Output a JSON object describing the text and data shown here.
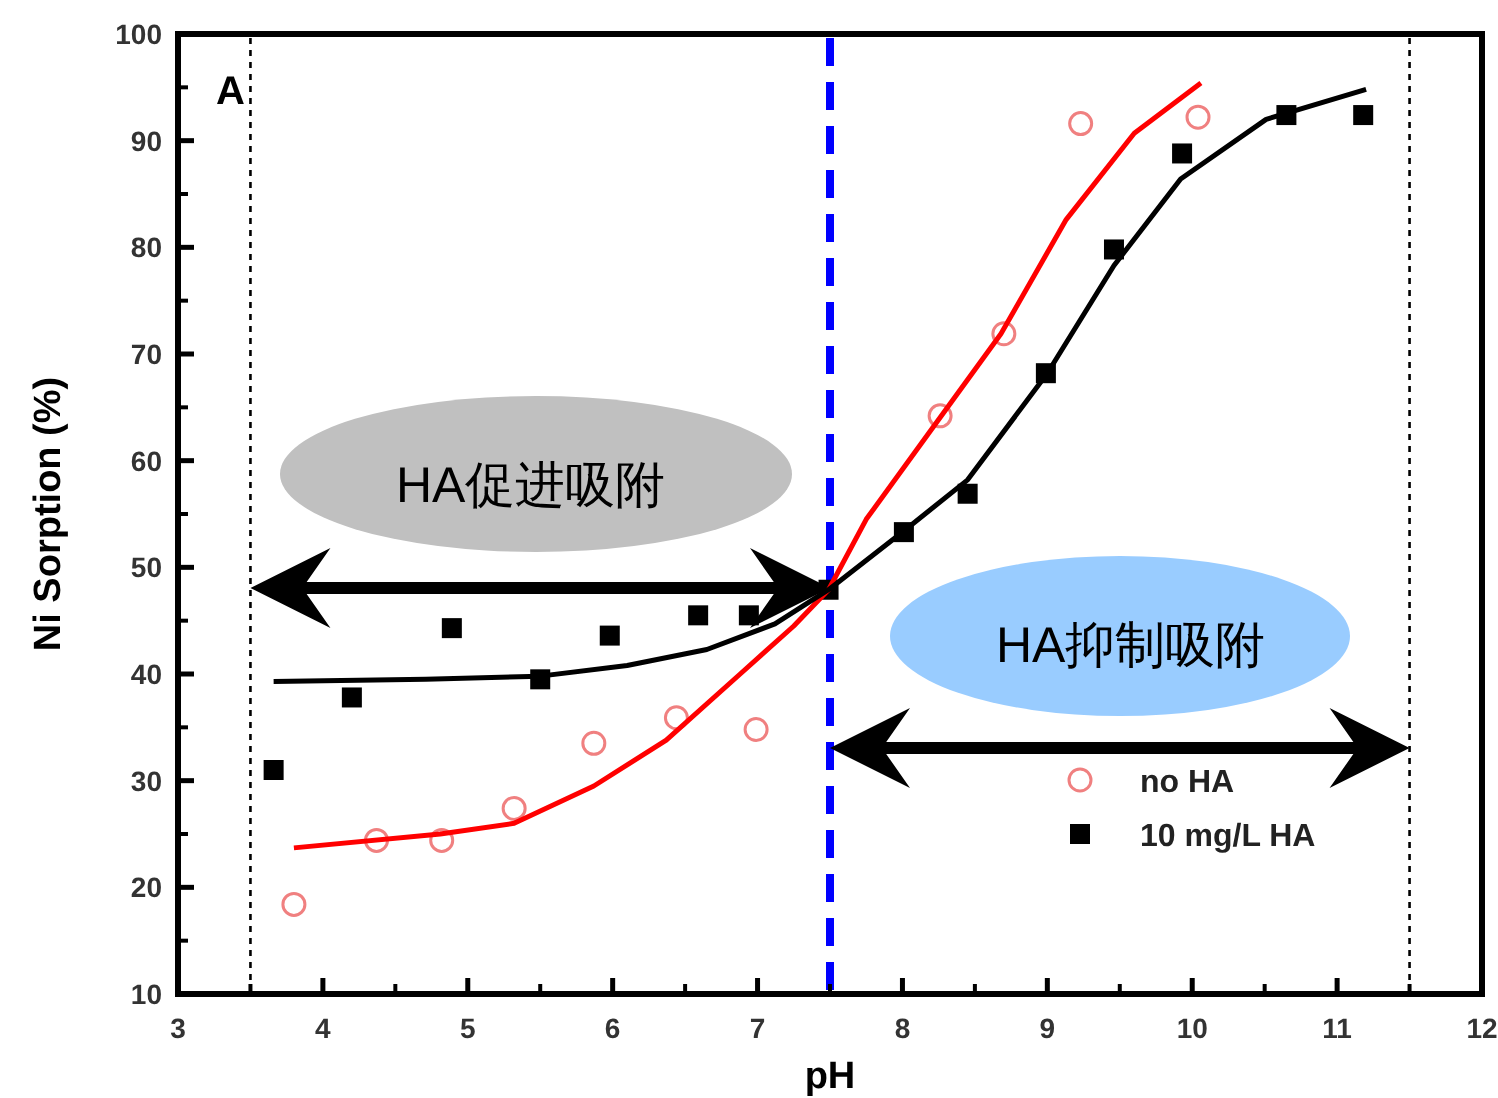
{
  "chart_data": {
    "type": "scatter",
    "xlabel": "pH",
    "ylabel": "Ni Sorption (%)",
    "xlim": [
      3,
      12
    ],
    "xticks": [
      3,
      4,
      5,
      6,
      7,
      8,
      9,
      10,
      11,
      12
    ],
    "ylim": [
      10,
      100
    ],
    "yticks": [
      10,
      20,
      30,
      40,
      50,
      60,
      70,
      80,
      90,
      100
    ],
    "grid": false,
    "legend": "bottom right",
    "annotations": [
      "A",
      "HA促进吸附",
      "HA抑制吸附"
    ],
    "ref_lines": [
      {
        "axis": "x",
        "value": 7.5,
        "color": "#0000ff",
        "line_style": "dashed"
      },
      {
        "axis": "x",
        "value": 3.5,
        "color": "#000000",
        "line_style": "dotted"
      },
      {
        "axis": "x",
        "value": 11.5,
        "color": "#000000",
        "line_style": "dotted"
      }
    ],
    "series": [
      {
        "name": "no HA",
        "marker": "circle",
        "color": "#f08080",
        "x": [
          3.8,
          4.37,
          4.82,
          5.32,
          5.87,
          6.44,
          6.99,
          8.26,
          8.7,
          9.23,
          10.04
        ],
        "values": [
          18.4,
          24.4,
          24.4,
          27.4,
          33.5,
          35.9,
          34.8,
          64.2,
          71.9,
          91.6,
          92.2
        ]
      },
      {
        "name": "10 mg/L HA",
        "marker": "square",
        "color": "#000000",
        "x": [
          3.66,
          4.2,
          4.89,
          5.5,
          5.98,
          6.59,
          6.94,
          7.49,
          8.01,
          8.45,
          8.99,
          9.46,
          9.93,
          10.65,
          11.18
        ],
        "values": [
          31.0,
          37.8,
          44.3,
          39.5,
          43.6,
          45.5,
          45.5,
          47.9,
          53.3,
          56.9,
          68.2,
          79.8,
          88.8,
          92.4,
          92.4
        ]
      },
      {
        "type": "line",
        "color": "#ff0000",
        "x": [
          3.8,
          4.81,
          5.32,
          5.87,
          6.37,
          6.88,
          7.25,
          7.49,
          7.75,
          8.22,
          8.68,
          9.13,
          9.6,
          10.06
        ],
        "values": [
          23.7,
          25.0,
          26.0,
          29.5,
          33.8,
          40.0,
          44.5,
          47.9,
          54.5,
          63.3,
          71.9,
          82.6,
          90.7,
          95.4
        ]
      },
      {
        "type": "line",
        "color": "#000000",
        "x": [
          3.66,
          4.71,
          5.5,
          6.1,
          6.65,
          7.12,
          7.49,
          7.99,
          8.45,
          9.0,
          9.46,
          9.92,
          10.51,
          11.2
        ],
        "values": [
          39.3,
          39.5,
          39.8,
          40.8,
          42.3,
          44.7,
          47.9,
          53.2,
          58.2,
          68.2,
          78.3,
          86.4,
          92.0,
          94.8
        ]
      }
    ]
  }
}
